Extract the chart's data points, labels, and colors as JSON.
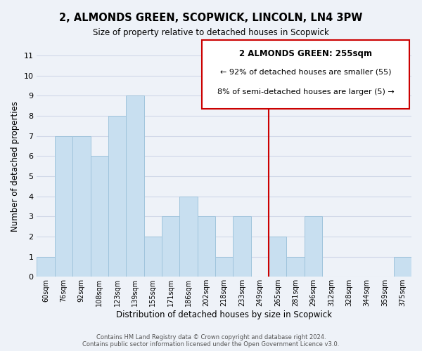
{
  "title": "2, ALMONDS GREEN, SCOPWICK, LINCOLN, LN4 3PW",
  "subtitle": "Size of property relative to detached houses in Scopwick",
  "xlabel": "Distribution of detached houses by size in Scopwick",
  "ylabel": "Number of detached properties",
  "footer_line1": "Contains HM Land Registry data © Crown copyright and database right 2024.",
  "footer_line2": "Contains public sector information licensed under the Open Government Licence v3.0.",
  "bin_labels": [
    "60sqm",
    "76sqm",
    "92sqm",
    "108sqm",
    "123sqm",
    "139sqm",
    "155sqm",
    "171sqm",
    "186sqm",
    "202sqm",
    "218sqm",
    "233sqm",
    "249sqm",
    "265sqm",
    "281sqm",
    "296sqm",
    "312sqm",
    "328sqm",
    "344sqm",
    "359sqm",
    "375sqm"
  ],
  "bar_heights": [
    1,
    7,
    7,
    6,
    8,
    9,
    2,
    3,
    4,
    3,
    1,
    3,
    0,
    2,
    1,
    3,
    0,
    0,
    0,
    0,
    1
  ],
  "bar_color": "#c8dff0",
  "bar_edgecolor": "#a0c4dc",
  "vline_color": "#cc0000",
  "ylim": [
    0,
    11
  ],
  "yticks": [
    0,
    1,
    2,
    3,
    4,
    5,
    6,
    7,
    8,
    9,
    10,
    11
  ],
  "annotation_title": "2 ALMONDS GREEN: 255sqm",
  "annotation_line1": "← 92% of detached houses are smaller (55)",
  "annotation_line2": "8% of semi-detached houses are larger (5) →",
  "grid_color": "#d0d8e8",
  "background_color": "#eef2f8"
}
